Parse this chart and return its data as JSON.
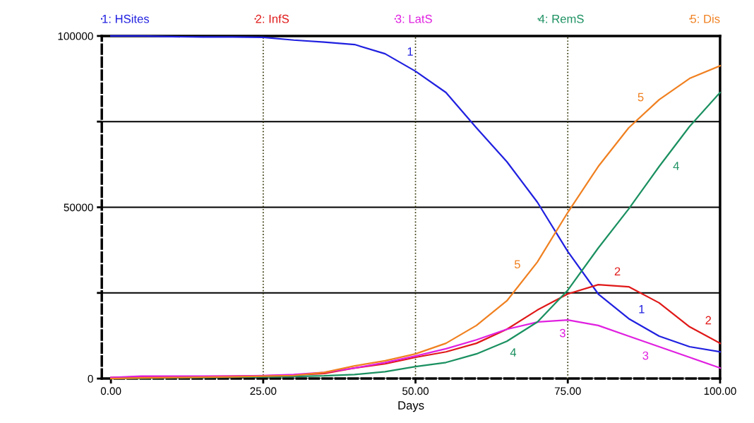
{
  "chart_data": {
    "type": "line",
    "xlabel": "Days",
    "x": [
      0,
      5,
      10,
      15,
      20,
      25,
      30,
      35,
      40,
      45,
      50,
      55,
      60,
      65,
      70,
      75,
      80,
      85,
      90,
      95,
      100
    ],
    "series": [
      {
        "name": "1: HSites",
        "color": "#2020e0",
        "values": [
          100000,
          100000,
          99800,
          99700,
          99700,
          99600,
          98800,
          98200,
          97500,
          94800,
          89700,
          83500,
          73200,
          63300,
          51500,
          37100,
          24700,
          17500,
          12400,
          9300,
          7800
        ]
      },
      {
        "name": "2: InfS",
        "color": "#e01818",
        "values": [
          300,
          500,
          500,
          600,
          700,
          800,
          1000,
          1500,
          3100,
          4300,
          6200,
          7800,
          10300,
          14400,
          20000,
          24700,
          27400,
          26800,
          22100,
          15100,
          10300
        ]
      },
      {
        "name": "3: LatS",
        "color": "#e020e0",
        "values": [
          300,
          700,
          700,
          700,
          700,
          900,
          1200,
          1800,
          3100,
          4700,
          6600,
          8700,
          11300,
          14400,
          16500,
          17100,
          15500,
          12400,
          9300,
          6200,
          3100
        ]
      },
      {
        "name": "4: RemS",
        "color": "#1a9060",
        "values": [
          0,
          100,
          200,
          300,
          400,
          500,
          600,
          800,
          1200,
          2000,
          3500,
          4700,
          7200,
          10900,
          16500,
          25800,
          38100,
          49500,
          61900,
          73600,
          83500
        ]
      },
      {
        "name": "5: Dis",
        "color": "#f08020",
        "values": [
          0,
          200,
          300,
          400,
          500,
          700,
          900,
          1800,
          3700,
          5200,
          7200,
          10300,
          15500,
          22700,
          34000,
          48500,
          61900,
          73200,
          81400,
          87600,
          91300
        ]
      }
    ],
    "xlim": [
      -1.5,
      100
    ],
    "xticks": [
      {
        "value": 0,
        "label": "0.00"
      },
      {
        "value": 25,
        "label": "25.00"
      },
      {
        "value": 50,
        "label": "50.00"
      },
      {
        "value": 75,
        "label": "75.00"
      },
      {
        "value": 100,
        "label": "100.00"
      }
    ],
    "ylim": [
      0,
      100000
    ],
    "yticks": [
      0,
      {
        "value": 25000,
        "label": null
      },
      50000,
      {
        "value": 75000,
        "label": null
      },
      100000
    ],
    "grid": "y",
    "legend": "top",
    "ref_lines": [
      {
        "axis": "x",
        "value": 25,
        "line_style": "dotted",
        "color": "#303000"
      },
      {
        "axis": "x",
        "value": 50,
        "line_style": "dotted",
        "color": "#303000"
      },
      {
        "axis": "x",
        "value": 75,
        "line_style": "dotted",
        "color": "#303000"
      }
    ],
    "annotations": [
      {
        "text": "1",
        "x": 48,
        "y": 91700
      },
      {
        "text": "1",
        "x": 86,
        "y": 16500
      },
      {
        "text": "2",
        "x": 83,
        "y": 27000
      },
      {
        "text": "2",
        "x": 97,
        "y": 13200
      },
      {
        "text": "3",
        "x": 74,
        "y": 17000
      },
      {
        "text": "3",
        "x": 88.5,
        "y": 10200
      },
      {
        "text": "4",
        "x": 65,
        "y": 10900
      },
      {
        "text": "4",
        "x": 91,
        "y": 64200
      },
      {
        "text": "5",
        "x": 88.5,
        "y": 78900
      },
      {
        "text": "5",
        "x": 68.5,
        "y": 30600
      }
    ]
  }
}
